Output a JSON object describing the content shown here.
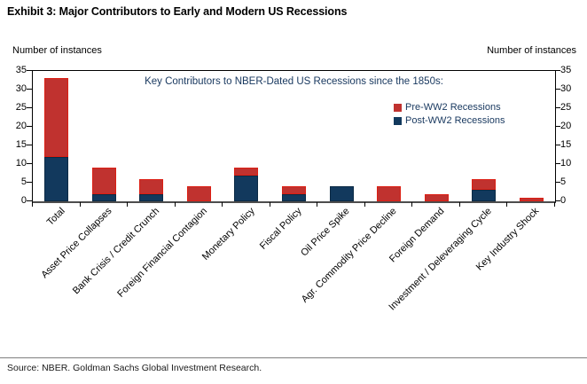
{
  "header": {
    "title": "Exhibit 3: Major Contributors to Early and Modern US Recessions"
  },
  "footer": {
    "source": "Source: NBER. Goldman Sachs Global Investment Research."
  },
  "chart_data": {
    "type": "bar",
    "stacked": true,
    "title": "Key Contributors to NBER-Dated US Recessions since the 1850s:",
    "left_axis_label": "Number of instances",
    "right_axis_label": "Number of instances",
    "ylim": [
      0,
      35
    ],
    "yticks": [
      0,
      5,
      10,
      15,
      20,
      25,
      30,
      35
    ],
    "grid": false,
    "legend_position": "upper-right-inside",
    "categories": [
      "Total",
      "Asset Price Collapses",
      "Bank Crisis / Credit Crunch",
      "Foreign Financial Contagion",
      "Monetary Policy",
      "Fiscal Policy",
      "Oil Price Spike",
      "Agr. Commodity Price Decline",
      "Foreign Demand",
      "Investment / Deleveraging Cycle",
      "Key Industry Shock"
    ],
    "series": [
      {
        "name": "Pre-WW2 Recessions",
        "stack_order": "top",
        "color": "#c0322f",
        "border_color": "#dc1f14",
        "values": [
          21,
          7,
          4,
          4,
          2,
          2,
          0,
          4,
          2,
          3,
          1
        ]
      },
      {
        "name": "Post-WW2 Recessions",
        "stack_order": "bottom",
        "color": "#12395d",
        "border_color": "#0b2a45",
        "values": [
          12,
          2,
          2,
          0,
          7,
          2,
          4,
          0,
          0,
          3,
          0
        ]
      }
    ],
    "totals": [
      33,
      9,
      6,
      4,
      9,
      4,
      4,
      4,
      2,
      6,
      1
    ]
  }
}
